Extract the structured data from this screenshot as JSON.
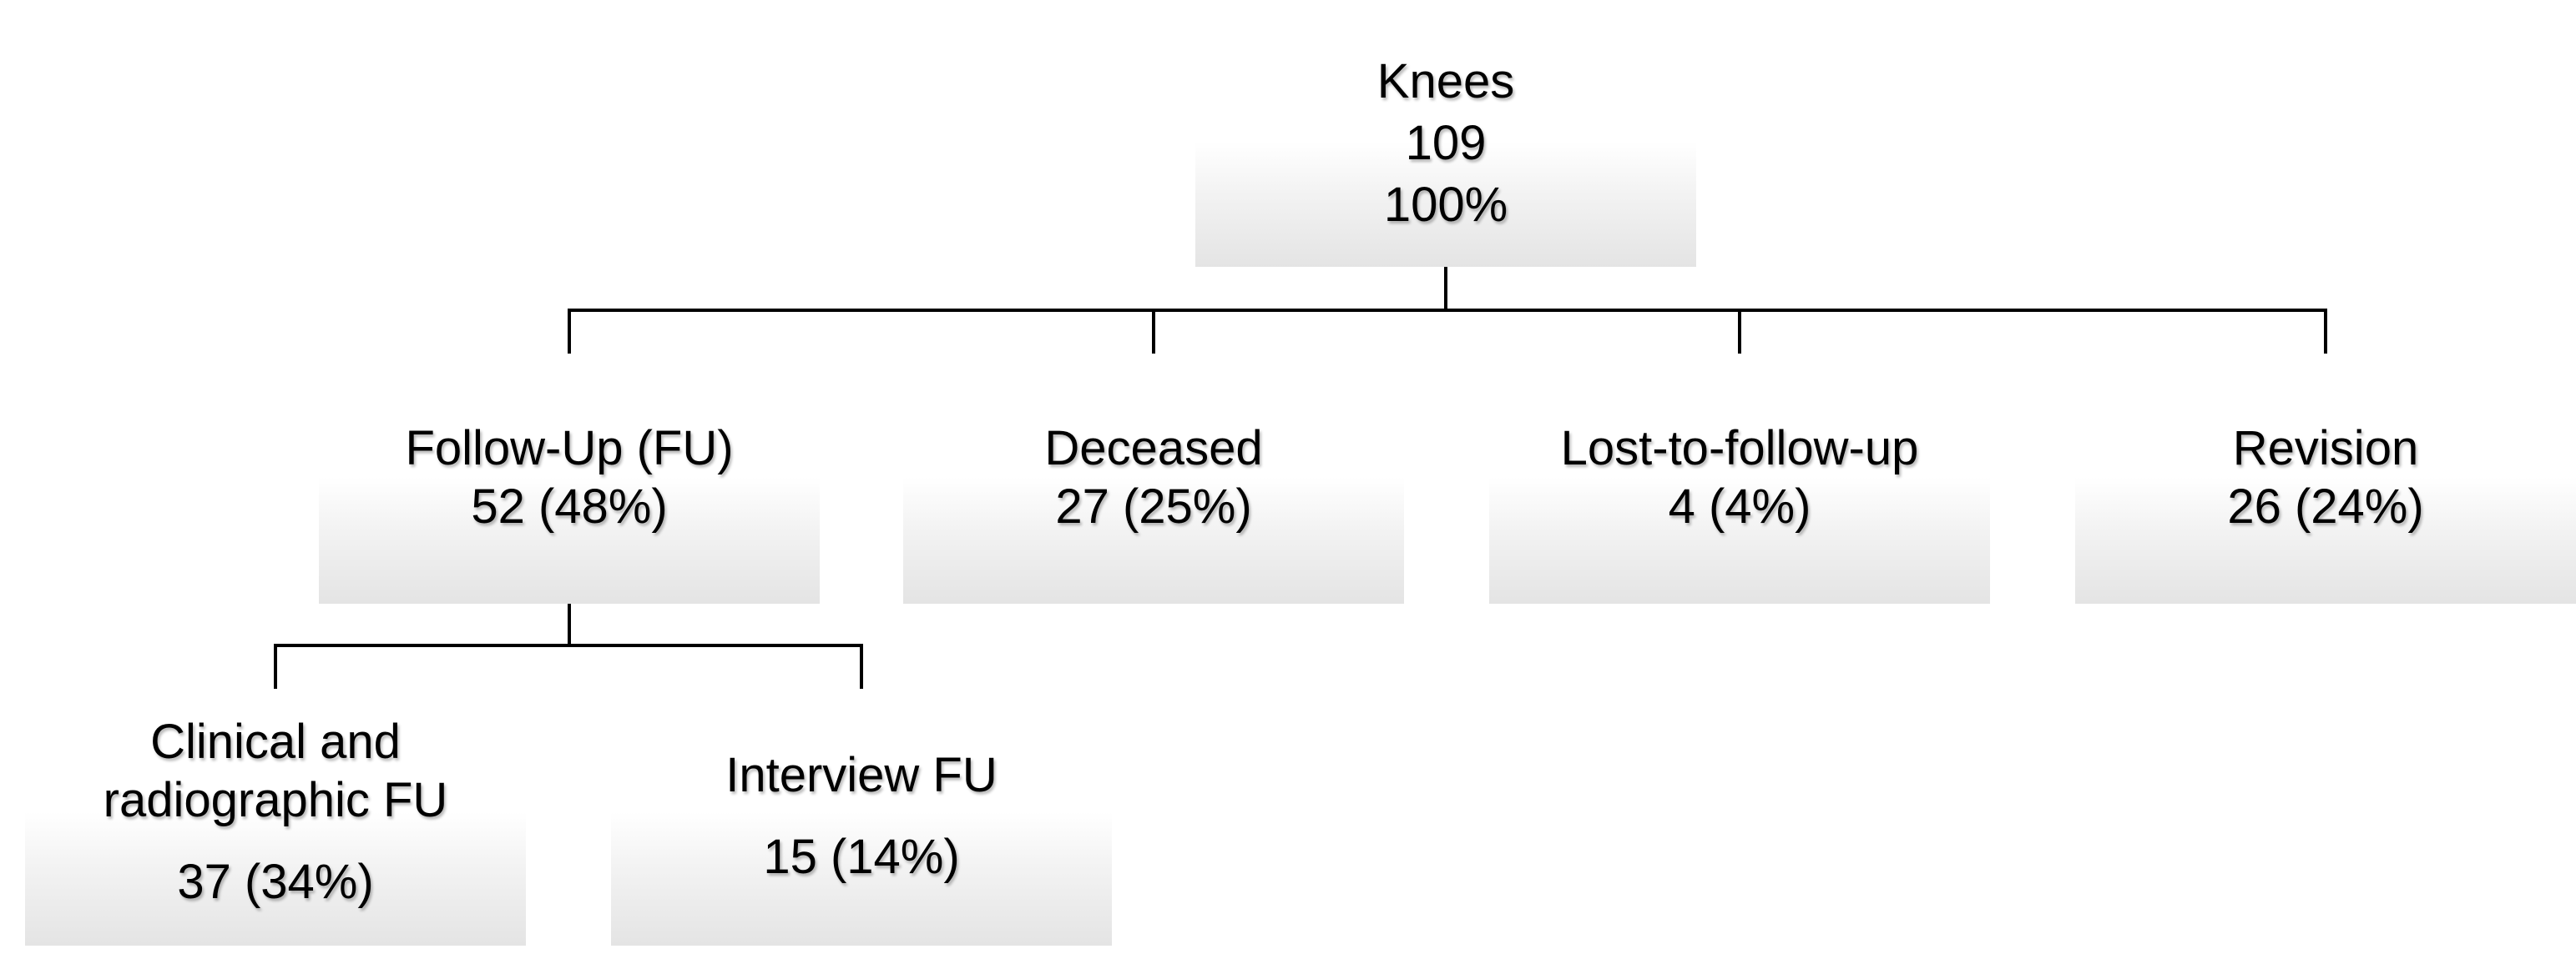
{
  "root": {
    "label": "Knees",
    "count": "109",
    "percent": "100%"
  },
  "level1": [
    {
      "label": "Follow-Up (FU)",
      "value": "52 (48%)"
    },
    {
      "label": "Deceased",
      "value": "27 (25%)"
    },
    {
      "label": "Lost-to-follow-up",
      "value": "4 (4%)"
    },
    {
      "label": "Revision",
      "value": "26 (24%)"
    }
  ],
  "level2": [
    {
      "label_line1": "Clinical and",
      "label_line2": "radiographic FU",
      "value": "37 (34%)"
    },
    {
      "label": "Interview FU",
      "value": "15 (14%)"
    }
  ]
}
